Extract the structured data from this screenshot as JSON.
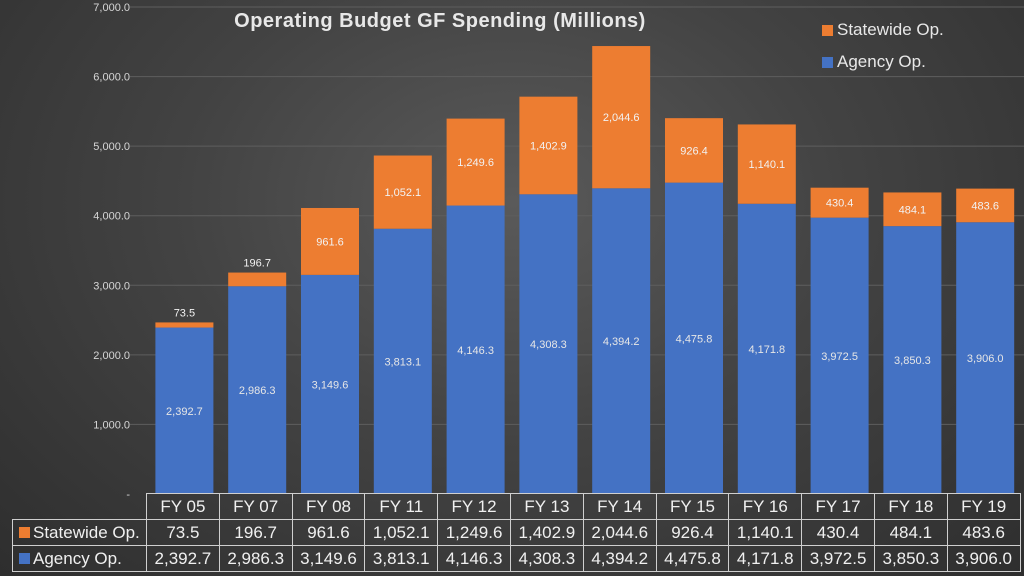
{
  "chart_data": {
    "type": "bar",
    "stacked": true,
    "title": "Operating Budget GF Spending (Millions)",
    "categories": [
      "FY 05",
      "FY 07",
      "FY 08",
      "FY 11",
      "FY 12",
      "FY 13",
      "FY 14",
      "FY 15",
      "FY 16",
      "FY 17",
      "FY 18",
      "FY 19"
    ],
    "series": [
      {
        "name": "Agency Op.",
        "color": "#4472c4",
        "values": [
          2392.7,
          2986.3,
          3149.6,
          3813.1,
          4146.3,
          4308.3,
          4394.2,
          4475.8,
          4171.8,
          3972.5,
          3850.3,
          3906.0
        ],
        "labels": [
          "2,392.7",
          "2,986.3",
          "3,149.6",
          "3,813.1",
          "4,146.3",
          "4,308.3",
          "4,394.2",
          "4,475.8",
          "4,171.8",
          "3,972.5",
          "3,850.3",
          "3,906.0"
        ]
      },
      {
        "name": "Statewide Op.",
        "color": "#ed7d31",
        "values": [
          73.5,
          196.7,
          961.6,
          1052.1,
          1249.6,
          1402.9,
          2044.6,
          926.4,
          1140.1,
          430.4,
          484.1,
          483.6
        ],
        "labels": [
          "73.5",
          "196.7",
          "961.6",
          "1,052.1",
          "1,249.6",
          "1,402.9",
          "2,044.6",
          "926.4",
          "1,140.1",
          "430.4",
          "484.1",
          "483.6"
        ]
      }
    ],
    "yticks": [
      "-",
      "1,000.0",
      "2,000.0",
      "3,000.0",
      "4,000.0",
      "5,000.0",
      "6,000.0",
      "7,000.0"
    ],
    "ylim": [
      0,
      7000
    ],
    "legend": [
      {
        "name": "Statewide Op.",
        "color": "#ed7d31"
      },
      {
        "name": "Agency Op.",
        "color": "#4472c4"
      }
    ],
    "legend_position": "top-right",
    "data_table": true
  }
}
